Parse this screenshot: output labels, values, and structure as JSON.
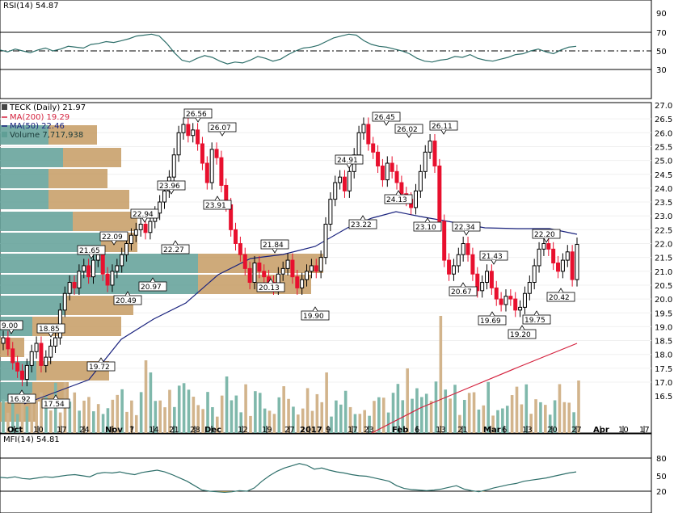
{
  "rsi_panel": {
    "header": "RSI(14) 54.87",
    "ticks": [
      "90",
      "70",
      "50",
      "30"
    ],
    "levels": {
      "overbought": 70,
      "mid": 50,
      "oversold": 30
    },
    "series_color": "#2e6f6a",
    "fill_color": "#2e8b7a",
    "values": [
      51,
      49,
      52,
      50,
      48,
      51,
      53,
      50,
      52,
      55,
      54,
      53,
      57,
      58,
      60,
      59,
      61,
      63,
      66,
      67,
      68,
      66,
      58,
      48,
      40,
      38,
      42,
      45,
      43,
      39,
      36,
      38,
      37,
      40,
      44,
      42,
      39,
      41,
      46,
      50,
      53,
      54,
      56,
      60,
      64,
      66,
      68,
      67,
      61,
      57,
      55,
      54,
      52,
      50,
      47,
      42,
      39,
      38,
      40,
      41,
      44,
      43,
      46,
      42,
      40,
      39,
      41,
      43,
      46,
      47,
      50,
      52,
      49,
      47,
      51,
      54,
      55
    ]
  },
  "price_panel": {
    "symbol_label": "TECK (Daily) 21.97",
    "ma200_label": "MA(200) 19.29",
    "ma50_label": "MA(50) 22.46",
    "volume_label": "Volume 7,717,938",
    "colors": {
      "up": "#000000",
      "down": "#e8102e",
      "ma200": "#d4213d",
      "ma50": "#1a237e",
      "vol_up": "#7fb8ab",
      "vol_down": "#d2b48c",
      "vp_up": "#5f9f96",
      "vp_down": "#c69b63"
    },
    "y_ticks": [
      "27.0",
      "26.5",
      "26.0",
      "25.5",
      "25.0",
      "24.5",
      "24.0",
      "23.5",
      "23.0",
      "22.5",
      "22.0",
      "21.5",
      "21.0",
      "20.5",
      "20.0",
      "19.5",
      "19.0",
      "18.5",
      "18.0",
      "17.5",
      "17.0",
      "16.5"
    ],
    "x_ticks": [
      {
        "label": "Oct",
        "bold": true
      },
      {
        "label": "10",
        "bold": false
      },
      {
        "label": "17",
        "bold": false
      },
      {
        "label": "24",
        "bold": false
      },
      {
        "label": "Nov",
        "bold": true
      },
      {
        "label": "7",
        "bold": false
      },
      {
        "label": "14",
        "bold": false
      },
      {
        "label": "21",
        "bold": false
      },
      {
        "label": "28",
        "bold": false
      },
      {
        "label": "Dec",
        "bold": true
      },
      {
        "label": "12",
        "bold": false
      },
      {
        "label": "19",
        "bold": false
      },
      {
        "label": "27",
        "bold": false
      },
      {
        "label": "2017",
        "bold": true
      },
      {
        "label": "9",
        "bold": false
      },
      {
        "label": "17",
        "bold": false
      },
      {
        "label": "23",
        "bold": false
      },
      {
        "label": "Feb",
        "bold": true
      },
      {
        "label": "6",
        "bold": false
      },
      {
        "label": "13",
        "bold": false
      },
      {
        "label": "21",
        "bold": false
      },
      {
        "label": "Mar",
        "bold": true
      },
      {
        "label": "6",
        "bold": false
      },
      {
        "label": "13",
        "bold": false
      },
      {
        "label": "20",
        "bold": false
      },
      {
        "label": "27",
        "bold": false
      },
      {
        "label": "Apr",
        "bold": true
      },
      {
        "label": "10",
        "bold": false
      },
      {
        "label": "17",
        "bold": false
      }
    ],
    "price_callouts": [
      {
        "text": "9.00"
      },
      {
        "text": "16.92"
      },
      {
        "text": "18.85"
      },
      {
        "text": "17.54"
      },
      {
        "text": "21.65"
      },
      {
        "text": "19.72"
      },
      {
        "text": "22.09"
      },
      {
        "text": "20.49"
      },
      {
        "text": "22.94"
      },
      {
        "text": "20.97"
      },
      {
        "text": "23.96"
      },
      {
        "text": "22.27"
      },
      {
        "text": "26.56"
      },
      {
        "text": "26.07"
      },
      {
        "text": "23.91"
      },
      {
        "text": "21.84"
      },
      {
        "text": "20.13"
      },
      {
        "text": "19.90"
      },
      {
        "text": "24.91"
      },
      {
        "text": "23.22"
      },
      {
        "text": "26.45"
      },
      {
        "text": "26.02"
      },
      {
        "text": "24.13"
      },
      {
        "text": "26.11"
      },
      {
        "text": "23.10"
      },
      {
        "text": "22.34"
      },
      {
        "text": "20.67"
      },
      {
        "text": "21.43"
      },
      {
        "text": "19.69"
      },
      {
        "text": "19.20"
      },
      {
        "text": "19.75"
      },
      {
        "text": "22.20"
      },
      {
        "text": "20.42"
      }
    ]
  },
  "mfi_panel": {
    "header": "MFI(14) 54.81",
    "ticks": [
      "80",
      "50",
      "20"
    ],
    "levels": {
      "overbought": 80,
      "oversold": 20
    },
    "series_color": "#2e6f6a",
    "fill_color": "#e8a33a",
    "values": [
      45,
      44,
      46,
      43,
      42,
      44,
      46,
      45,
      47,
      49,
      50,
      48,
      46,
      52,
      54,
      53,
      55,
      52,
      50,
      54,
      56,
      58,
      55,
      50,
      44,
      38,
      30,
      22,
      20,
      19,
      18,
      19,
      21,
      20,
      26,
      38,
      48,
      56,
      62,
      66,
      70,
      67,
      60,
      62,
      58,
      55,
      53,
      50,
      48,
      47,
      44,
      41,
      38,
      30,
      25,
      23,
      22,
      21,
      22,
      24,
      27,
      30,
      24,
      21,
      19,
      22,
      26,
      29,
      32,
      34,
      38,
      40,
      42,
      44,
      47,
      50,
      53,
      55
    ]
  },
  "chart_data": [
    {
      "type": "line",
      "title": "RSI(14) 54.87",
      "ylim": [
        0,
        100
      ],
      "series": [
        {
          "name": "RSI(14)",
          "last": 54.87
        }
      ]
    },
    {
      "type": "candlestick",
      "title": "TECK (Daily) 21.97",
      "ylim": [
        16.5,
        27.0
      ],
      "last_close": 21.97,
      "annotated_highs": [
        18.85,
        21.65,
        22.09,
        22.94,
        23.96,
        26.56,
        26.07,
        21.84,
        24.91,
        26.45,
        26.02,
        26.11,
        22.34,
        21.43,
        22.2
      ],
      "annotated_lows": [
        16.92,
        17.54,
        19.72,
        20.49,
        20.97,
        22.27,
        23.91,
        20.13,
        19.9,
        23.22,
        24.13,
        23.1,
        20.67,
        19.69,
        19.2,
        19.75,
        20.42
      ],
      "series": [
        {
          "name": "MA(200)",
          "last": 19.29
        },
        {
          "name": "MA(50)",
          "last": 22.46
        },
        {
          "name": "Volume",
          "last": 7717938
        }
      ]
    },
    {
      "type": "line",
      "title": "MFI(14) 54.81",
      "ylim": [
        0,
        100
      ],
      "series": [
        {
          "name": "MFI(14)",
          "last": 54.81
        }
      ]
    }
  ]
}
